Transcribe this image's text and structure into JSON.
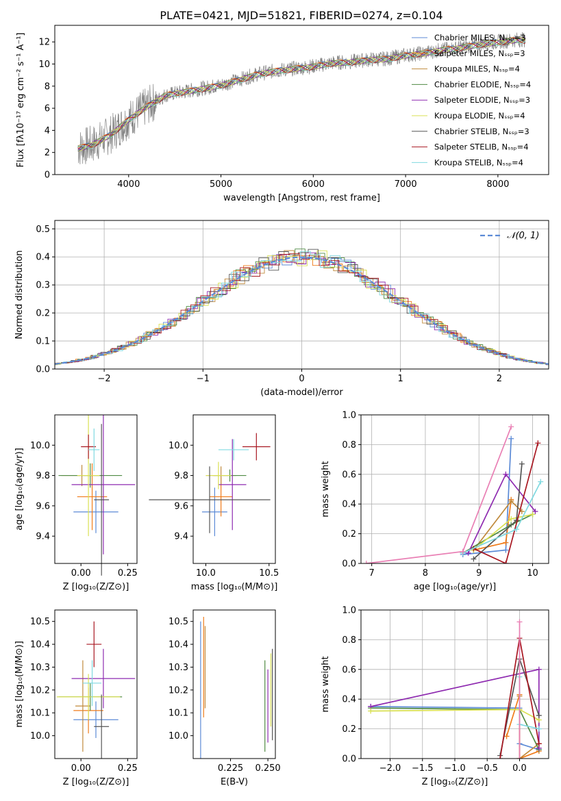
{
  "title": "PLATE=0421, MJD=51821, FIBERID=0274, z=0.104",
  "colors": {
    "series": [
      "#5b8ad6",
      "#f07b19",
      "#c08a3c",
      "#4f8a43",
      "#8e2ab0",
      "#d9e052",
      "#555555",
      "#a81620",
      "#7fd9e0"
    ],
    "extra": "#e97fb4",
    "gauss": "#5b8ad6"
  },
  "chart_data": [
    {
      "id": "spectrum",
      "type": "line",
      "xlabel": "wavelength [Angstrom, rest frame]",
      "ylabel": "Flux [fλ10⁻¹⁷ erg cm⁻² s⁻¹ A⁻¹]",
      "xlim": [
        3200,
        8550
      ],
      "ylim": [
        0,
        13.5
      ],
      "xticks": [
        4000,
        5000,
        6000,
        7000,
        8000
      ],
      "yticks": [
        0,
        2,
        4,
        6,
        8,
        10,
        12
      ],
      "grid": false,
      "legend_position": "right",
      "legend": [
        "Chabrier MILES, Nₛₛₚ=3",
        "Salpeter MILES, Nₛₛₚ=3",
        "Kroupa MILES, Nₛₛₚ=4",
        "Chabrier ELODIE, Nₛₛₚ=4",
        "Salpeter ELODIE, Nₛₛₚ=3",
        "Kroupa ELODIE, Nₛₛₚ=4",
        "Chabrier STELIB, Nₛₛₚ=3",
        "Salpeter STELIB, Nₛₛₚ=4",
        "Kroupa STELIB, Nₛₛₚ=4"
      ],
      "x": [
        3450,
        3600,
        3800,
        4000,
        4200,
        4400,
        4600,
        4800,
        5000,
        5200,
        5400,
        5600,
        5800,
        6000,
        6200,
        6400,
        6600,
        6800,
        7000,
        7200,
        7400,
        7600,
        7800,
        8000,
        8200,
        8300
      ],
      "y": [
        2.4,
        2.7,
        3.6,
        5.0,
        6.2,
        7.2,
        7.5,
        7.8,
        8.1,
        8.6,
        9.1,
        9.4,
        9.6,
        9.8,
        10.1,
        10.2,
        10.4,
        10.5,
        10.8,
        11.0,
        11.3,
        11.5,
        11.8,
        12.0,
        12.2,
        12.2
      ]
    },
    {
      "id": "residuals",
      "type": "step",
      "xlabel": "(data-model)/error",
      "ylabel": "Normed distribution",
      "xlim": [
        -2.5,
        2.5
      ],
      "ylim": [
        0,
        0.53
      ],
      "xticks": [
        -2,
        -1,
        0,
        1,
        2
      ],
      "yticks": [
        0.0,
        0.1,
        0.2,
        0.3,
        0.4,
        0.5
      ],
      "grid": true,
      "legend_position": "top-right",
      "gauss_label": "𝒩(0, 1)"
    },
    {
      "id": "age-vs-Z",
      "type": "errorbar",
      "xlabel": "Z [log₁₀(Z/Z⊙)]",
      "ylabel": "age  [log₁₀(age/yr)]",
      "xlim": [
        -0.14,
        0.3
      ],
      "ylim": [
        9.22,
        10.2
      ],
      "xticks": [
        0.0,
        0.25
      ],
      "yticks": [
        9.4,
        9.6,
        9.8,
        10.0
      ],
      "grid": false,
      "points": [
        {
          "x": 0.08,
          "y": 9.56,
          "xerr": 0.12,
          "yerr": 0.14
        },
        {
          "x": 0.06,
          "y": 9.66,
          "xerr": 0.08,
          "yerr": 0.22
        },
        {
          "x": 0.005,
          "y": 9.8,
          "xerr": 0.11,
          "yerr": 0.07
        },
        {
          "x": 0.05,
          "y": 9.8,
          "xerr": 0.17,
          "yerr": 0.08
        },
        {
          "x": 0.12,
          "y": 9.74,
          "xerr": 0.17,
          "yerr": 0.46
        },
        {
          "x": 0.04,
          "y": 9.8,
          "xerr": 0.06,
          "yerr": 0.4
        },
        {
          "x": 0.11,
          "y": 9.64,
          "xerr": 0.04,
          "yerr": 0.5
        },
        {
          "x": 0.04,
          "y": 9.99,
          "xerr": 0.04,
          "yerr": 0.08
        },
        {
          "x": 0.07,
          "y": 9.97,
          "xerr": 0.03,
          "yerr": 0.14
        }
      ]
    },
    {
      "id": "age-vs-mass",
      "type": "errorbar",
      "xlabel": "mass [log₁₀(M/M⊙)]",
      "ylabel": "",
      "xlim": [
        9.9,
        10.55
      ],
      "ylim": [
        9.22,
        10.2
      ],
      "xticks": [
        10.0,
        10.5
      ],
      "yticks": [
        9.4,
        9.6,
        9.8,
        10.0
      ],
      "grid": false,
      "points": [
        {
          "x": 10.07,
          "y": 9.56,
          "xerr": 0.1,
          "yerr": 0.16
        },
        {
          "x": 10.12,
          "y": 9.66,
          "xerr": 0.09,
          "yerr": 0.13
        },
        {
          "x": 10.12,
          "y": 9.8,
          "xerr": 0.12,
          "yerr": 0.06
        },
        {
          "x": 10.19,
          "y": 9.8,
          "xerr": 0.13,
          "yerr": 0.04
        },
        {
          "x": 10.21,
          "y": 9.74,
          "xerr": 0.11,
          "yerr": 0.3
        },
        {
          "x": 10.1,
          "y": 9.8,
          "xerr": 0.1,
          "yerr": 0.09
        },
        {
          "x": 10.03,
          "y": 9.64,
          "xerr": 0.48,
          "yerr": 0.22
        },
        {
          "x": 10.4,
          "y": 9.99,
          "xerr": 0.11,
          "yerr": 0.09
        },
        {
          "x": 10.22,
          "y": 9.97,
          "xerr": 0.12,
          "yerr": 0.07
        }
      ]
    },
    {
      "id": "weight-vs-age",
      "type": "line",
      "xlabel": "age  [log₁₀(age/yr)]",
      "ylabel": "mass weight",
      "xlim": [
        6.8,
        10.3
      ],
      "ylim": [
        0,
        1.0
      ],
      "xticks": [
        7,
        8,
        9,
        10
      ],
      "yticks": [
        0.0,
        0.2,
        0.4,
        0.6,
        0.8,
        1.0
      ],
      "grid": true,
      "series": [
        {
          "x": [
            8.7,
            9.5,
            9.6
          ],
          "y": [
            0.06,
            0.09,
            0.84
          ]
        },
        {
          "x": [
            8.9,
            9.5,
            9.6
          ],
          "y": [
            0.09,
            0.14,
            0.43
          ]
        },
        {
          "x": [
            8.9,
            9.6,
            9.8
          ],
          "y": [
            0.09,
            0.42,
            0.35
          ]
        },
        {
          "x": [
            8.7,
            9.6,
            10.0
          ],
          "y": [
            0.07,
            0.26,
            0.33
          ]
        },
        {
          "x": [
            8.8,
            9.5,
            10.05
          ],
          "y": [
            0.07,
            0.6,
            0.35
          ]
        },
        {
          "x": [
            8.9,
            9.6,
            10.0
          ],
          "y": [
            0.09,
            0.3,
            0.33
          ]
        },
        {
          "x": [
            8.9,
            9.7,
            9.8
          ],
          "y": [
            0.03,
            0.29,
            0.67
          ]
        },
        {
          "x": [
            8.9,
            9.5,
            10.1
          ],
          "y": [
            0.1,
            0.0,
            0.81
          ]
        },
        {
          "x": [
            8.7,
            9.7,
            10.15
          ],
          "y": [
            0.07,
            0.23,
            0.55
          ]
        },
        {
          "x": [
            6.9,
            8.7,
            9.6
          ],
          "y": [
            0.0,
            0.08,
            0.92
          ]
        }
      ]
    },
    {
      "id": "mass-vs-Z",
      "type": "errorbar",
      "xlabel": "Z [log₁₀(Z/Z⊙)]",
      "ylabel": "mass [log₁₀(M/M⊙)]",
      "xlim": [
        -0.14,
        0.3
      ],
      "ylim": [
        9.9,
        10.55
      ],
      "xticks": [
        0.0,
        0.25
      ],
      "yticks": [
        10.0,
        10.1,
        10.2,
        10.3,
        10.4,
        10.5
      ],
      "grid": false,
      "points": [
        {
          "x": 0.08,
          "y": 10.07,
          "xerr": 0.12,
          "yerr": 0.08
        },
        {
          "x": 0.04,
          "y": 10.11,
          "xerr": 0.08,
          "yerr": 0.1
        },
        {
          "x": 0.01,
          "y": 10.13,
          "xerr": 0.04,
          "yerr": 0.2
        },
        {
          "x": 0.05,
          "y": 10.17,
          "xerr": 0.17,
          "yerr": 0.06
        },
        {
          "x": 0.12,
          "y": 10.25,
          "xerr": 0.17,
          "yerr": 0.13
        },
        {
          "x": 0.04,
          "y": 10.17,
          "xerr": 0.17,
          "yerr": 0.1
        },
        {
          "x": 0.11,
          "y": 10.04,
          "xerr": 0.04,
          "yerr": 0.14
        },
        {
          "x": 0.07,
          "y": 10.4,
          "xerr": 0.04,
          "yerr": 0.1
        },
        {
          "x": 0.06,
          "y": 10.23,
          "xerr": 0.05,
          "yerr": 0.1
        }
      ]
    },
    {
      "id": "mass-vs-ebv",
      "type": "errorbar",
      "xlabel": "E(B-V)",
      "ylabel": "",
      "xlim": [
        0.2,
        0.255
      ],
      "ylim": [
        9.9,
        10.55
      ],
      "xticks": [
        0.225,
        0.25
      ],
      "yticks": [
        10.0,
        10.1,
        10.2,
        10.3,
        10.4,
        10.5
      ],
      "grid": false,
      "points": [
        {
          "x": 0.205,
          "y": 10.2,
          "xerr": 0,
          "yerr": 0.3
        },
        {
          "x": 0.207,
          "y": 10.3,
          "xerr": 0,
          "yerr": 0.22
        },
        {
          "x": 0.208,
          "y": 10.3,
          "xerr": 0,
          "yerr": 0.18
        },
        {
          "x": 0.248,
          "y": 10.13,
          "xerr": 0,
          "yerr": 0.2
        },
        {
          "x": 0.25,
          "y": 10.13,
          "xerr": 0,
          "yerr": 0.16
        },
        {
          "x": 0.252,
          "y": 10.2,
          "xerr": 0,
          "yerr": 0.16
        },
        {
          "x": 0.253,
          "y": 10.18,
          "xerr": 0,
          "yerr": 0.2
        }
      ]
    },
    {
      "id": "weight-vs-Z",
      "type": "line",
      "xlabel": "Z [log₁₀(Z/Z⊙)]",
      "ylabel": "mass weight",
      "xlim": [
        -2.45,
        0.45
      ],
      "ylim": [
        0,
        1.0
      ],
      "xticks": [
        -2.0,
        -1.5,
        -1.0,
        -0.5,
        0.0
      ],
      "yticks": [
        0.0,
        0.2,
        0.4,
        0.6,
        0.8,
        1.0
      ],
      "grid": true,
      "series": [
        {
          "x": [
            -2.3,
            0.0,
            0.0,
            0.3
          ],
          "y": [
            0.35,
            0.34,
            0.1,
            0.06
          ]
        },
        {
          "x": [
            -0.2,
            0.0,
            0.0,
            0.3
          ],
          "y": [
            0.15,
            0.43,
            0.0,
            0.05
          ]
        },
        {
          "x": [
            0.0,
            0.0,
            0.3
          ],
          "y": [
            0.42,
            0.0,
            0.1
          ]
        },
        {
          "x": [
            -2.3,
            0.0,
            0.3
          ],
          "y": [
            0.34,
            0.33,
            0.06
          ]
        },
        {
          "x": [
            -2.3,
            0.3,
            0.3
          ],
          "y": [
            0.35,
            0.6,
            0.07
          ]
        },
        {
          "x": [
            -2.3,
            0.0,
            0.3
          ],
          "y": [
            0.32,
            0.33,
            0.26
          ]
        },
        {
          "x": [
            -0.3,
            0.0,
            0.3
          ],
          "y": [
            0.02,
            0.67,
            0.29
          ]
        },
        {
          "x": [
            -0.3,
            0.0,
            0.3
          ],
          "y": [
            0.0,
            0.81,
            0.1
          ]
        },
        {
          "x": [
            0.0,
            0.0,
            0.3
          ],
          "y": [
            0.55,
            0.23,
            0.2
          ]
        },
        {
          "x": [
            0.0,
            0.0
          ],
          "y": [
            0.0,
            0.92
          ]
        }
      ]
    }
  ]
}
